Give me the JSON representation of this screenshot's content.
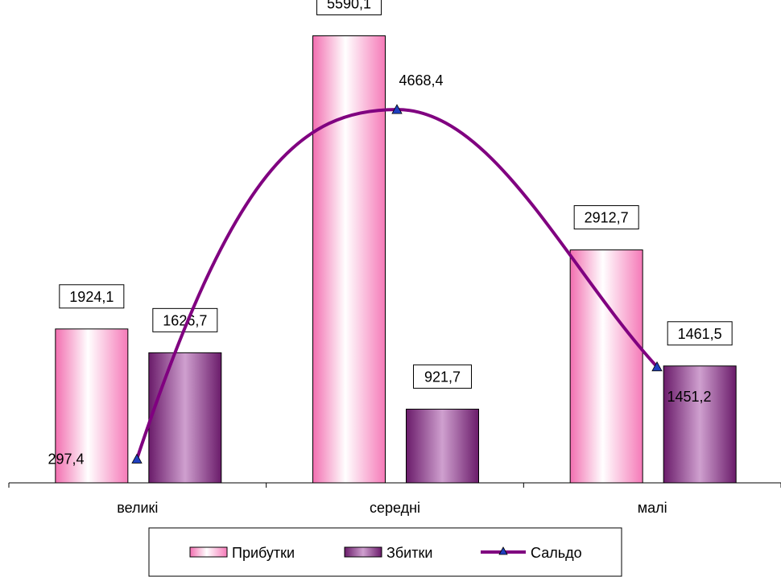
{
  "chart_data": {
    "type": "bar",
    "categories": [
      "великі",
      "середні",
      "малі"
    ],
    "ylim": [
      0,
      6000
    ],
    "grid": false,
    "legend_placement": "bottom",
    "series": [
      {
        "name": "Прибутки",
        "type": "bar",
        "values": [
          1924.1,
          5590.1,
          2912.7
        ],
        "labels": [
          "1924,1",
          "5590,1",
          "2912,7"
        ],
        "color": "#f8c8dc"
      },
      {
        "name": "Збитки",
        "type": "bar",
        "values": [
          1626.7,
          921.7,
          1461.5
        ],
        "labels": [
          "1626,7",
          "921,7",
          "1461,5"
        ],
        "color": "#a0509a"
      },
      {
        "name": "Сальдо",
        "type": "line",
        "values": [
          297.4,
          4668.4,
          1451.2
        ],
        "labels": [
          "297,4",
          "4668,4",
          "1451,2"
        ],
        "color": "#800080",
        "marker_color": "#1f3fbf"
      }
    ]
  }
}
